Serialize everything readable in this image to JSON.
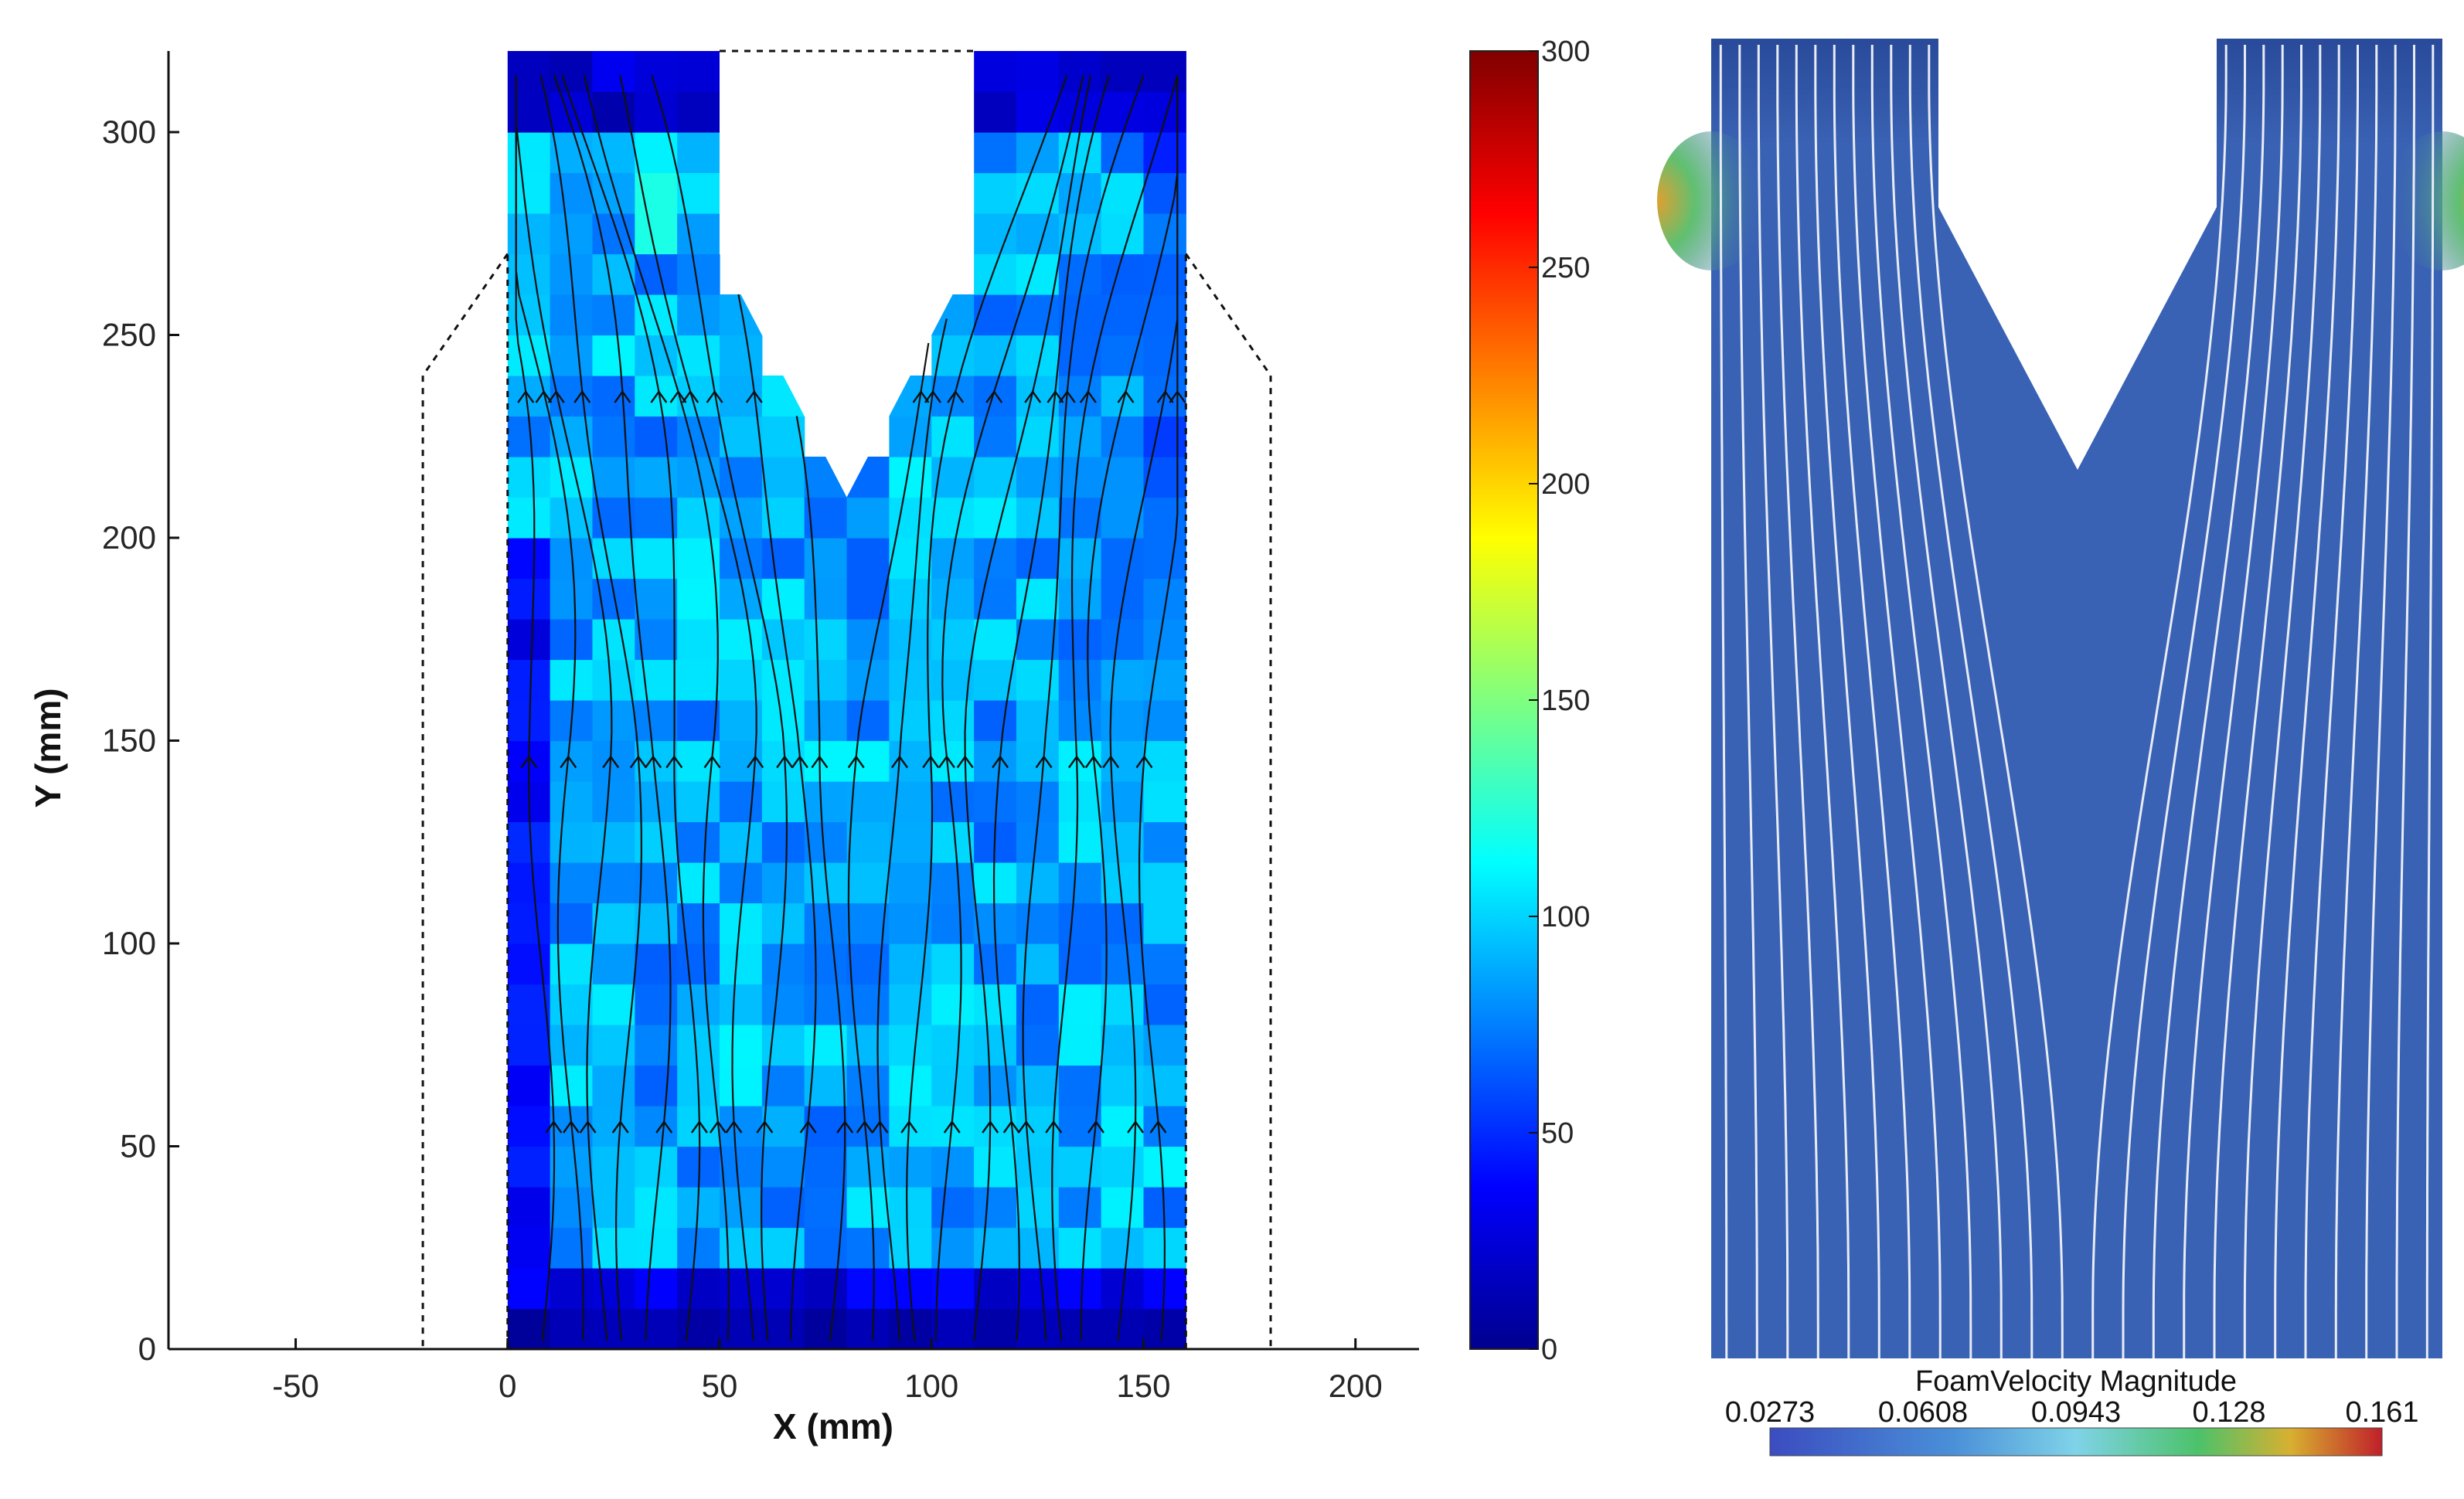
{
  "figure": {
    "left_panel": {
      "xlabel": "X (mm)",
      "ylabel": "Y (mm)",
      "xlim": [
        -80,
        215
      ],
      "ylim": [
        0,
        320
      ],
      "x_ticks": [
        "-50",
        "0",
        "50",
        "100",
        "150",
        "200"
      ],
      "y_ticks": [
        "0",
        "50",
        "100",
        "150",
        "200",
        "250",
        "300"
      ],
      "colorbar": {
        "range": [
          0,
          300
        ],
        "ticks": [
          "0",
          "50",
          "100",
          "150",
          "200",
          "250",
          "300"
        ],
        "colormap": "jet"
      }
    },
    "right_panel": {
      "colorbar_title": "FoamVelocity Magnitude",
      "colorbar_ticks": [
        "0.0273",
        "0.0608",
        "0.0943",
        "0.128",
        "0.161"
      ],
      "background_color": "#3a62b4",
      "streamline_color": "#e8ecf5"
    }
  },
  "chart_data": [
    {
      "type": "heatmap",
      "title": "",
      "xlabel": "X (mm)",
      "ylabel": "Y (mm)",
      "xlim": [
        -80,
        215
      ],
      "ylim": [
        0,
        320
      ],
      "grid": false,
      "colorbar_range": [
        0,
        300
      ],
      "cell_size_mm": 10,
      "description_values": "velocity magnitude mostly 60–100 in interior, ~0–30 near top/bottom walls and left edge",
      "domain_outline": {
        "channel_x": [
          0,
          160
        ],
        "channel_y": [
          0,
          320
        ],
        "notch_top_x": [
          50,
          110
        ],
        "notch_tip": [
          80,
          210
        ],
        "outer_dashed_x": [
          -20,
          180
        ]
      },
      "streamline_count": 22
    },
    {
      "type": "heatmap",
      "title": "",
      "colorbar_label": "FoamVelocity Magnitude",
      "colorbar_range": [
        0.0273,
        0.161
      ],
      "colorbar_ticks": [
        0.0273,
        0.0608,
        0.0943,
        0.128,
        0.161
      ],
      "streamline_count": 24
    }
  ]
}
